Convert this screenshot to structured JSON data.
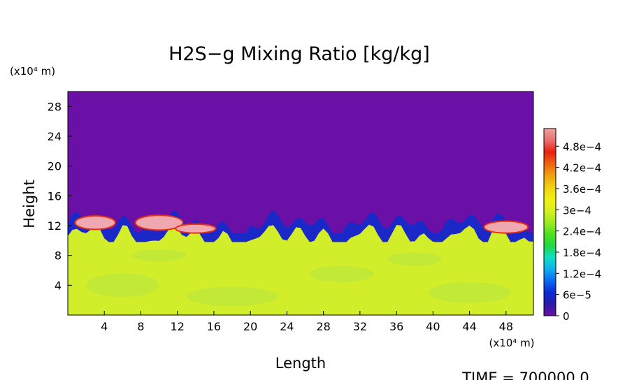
{
  "chart_data": {
    "type": "heatmap",
    "title": "H2S−g Mixing Ratio [kg/kg]",
    "xlabel": "Length",
    "ylabel": "Height",
    "x_unit_label": "(x10⁴ m)",
    "y_unit_label": "(x10⁴ m)",
    "xlim": [
      0,
      51
    ],
    "ylim": [
      0,
      30
    ],
    "x_ticks": [
      "4",
      "8",
      "12",
      "16",
      "20",
      "24",
      "28",
      "32",
      "36",
      "40",
      "44",
      "48"
    ],
    "y_ticks": [
      "4",
      "8",
      "12",
      "16",
      "20",
      "24",
      "28"
    ],
    "colorbar_labels": [
      "0",
      "6e−5",
      "1.2e−4",
      "1.8e−4",
      "2.4e−4",
      "3e−4",
      "3.6e−4",
      "4.2e−4",
      "4.8e−4"
    ],
    "colorbar_range": [
      0,
      0.00053
    ],
    "colormap": [
      "#6a10a6",
      "#2a1aa8",
      "#0a2ad8",
      "#0a6af0",
      "#10b0f0",
      "#10e0c0",
      "#20d840",
      "#50e020",
      "#a0ea20",
      "#d8f020",
      "#f0f010",
      "#f0d010",
      "#f0a010",
      "#f06010",
      "#e82010",
      "#e87070",
      "#f0a0a0"
    ],
    "regions": {
      "upper_value": 0,
      "lower_value": 0.000355,
      "front_height_range": [
        11,
        15
      ]
    },
    "time_label": "TIME = 700000.0",
    "colors": {
      "upper": "#6a10a6",
      "lower": "#d2ee2a",
      "lower_light": "#b8e640",
      "front_blue": "#1a28c8",
      "front_pink": "#f0a8b0",
      "front_red": "#e83010"
    }
  }
}
